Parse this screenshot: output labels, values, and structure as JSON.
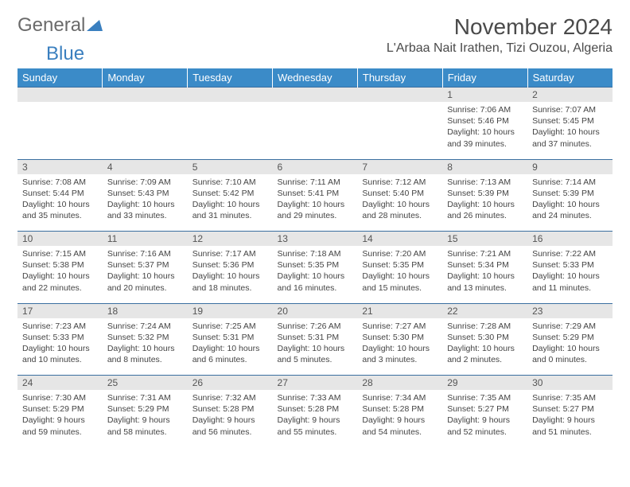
{
  "logo": {
    "general": "General",
    "blue": "Blue"
  },
  "title": "November 2024",
  "location": "L'Arbaa Nait Irathen, Tizi Ouzou, Algeria",
  "colors": {
    "header_bg": "#3b8bc8",
    "header_text": "#ffffff",
    "daynum_bg": "#e6e6e6",
    "border": "#3b6fa0",
    "body_text": "#444444",
    "title_text": "#4a4a4a",
    "logo_gray": "#6a6a6a",
    "logo_blue": "#3a7fbf"
  },
  "typography": {
    "title_fontsize": 28,
    "location_fontsize": 16,
    "dayheader_fontsize": 13,
    "daynum_fontsize": 12,
    "cell_fontsize": 10.5
  },
  "day_headers": [
    "Sunday",
    "Monday",
    "Tuesday",
    "Wednesday",
    "Thursday",
    "Friday",
    "Saturday"
  ],
  "weeks": [
    [
      null,
      null,
      null,
      null,
      null,
      {
        "n": "1",
        "sunrise": "Sunrise: 7:06 AM",
        "sunset": "Sunset: 5:46 PM",
        "daylight": "Daylight: 10 hours and 39 minutes."
      },
      {
        "n": "2",
        "sunrise": "Sunrise: 7:07 AM",
        "sunset": "Sunset: 5:45 PM",
        "daylight": "Daylight: 10 hours and 37 minutes."
      }
    ],
    [
      {
        "n": "3",
        "sunrise": "Sunrise: 7:08 AM",
        "sunset": "Sunset: 5:44 PM",
        "daylight": "Daylight: 10 hours and 35 minutes."
      },
      {
        "n": "4",
        "sunrise": "Sunrise: 7:09 AM",
        "sunset": "Sunset: 5:43 PM",
        "daylight": "Daylight: 10 hours and 33 minutes."
      },
      {
        "n": "5",
        "sunrise": "Sunrise: 7:10 AM",
        "sunset": "Sunset: 5:42 PM",
        "daylight": "Daylight: 10 hours and 31 minutes."
      },
      {
        "n": "6",
        "sunrise": "Sunrise: 7:11 AM",
        "sunset": "Sunset: 5:41 PM",
        "daylight": "Daylight: 10 hours and 29 minutes."
      },
      {
        "n": "7",
        "sunrise": "Sunrise: 7:12 AM",
        "sunset": "Sunset: 5:40 PM",
        "daylight": "Daylight: 10 hours and 28 minutes."
      },
      {
        "n": "8",
        "sunrise": "Sunrise: 7:13 AM",
        "sunset": "Sunset: 5:39 PM",
        "daylight": "Daylight: 10 hours and 26 minutes."
      },
      {
        "n": "9",
        "sunrise": "Sunrise: 7:14 AM",
        "sunset": "Sunset: 5:39 PM",
        "daylight": "Daylight: 10 hours and 24 minutes."
      }
    ],
    [
      {
        "n": "10",
        "sunrise": "Sunrise: 7:15 AM",
        "sunset": "Sunset: 5:38 PM",
        "daylight": "Daylight: 10 hours and 22 minutes."
      },
      {
        "n": "11",
        "sunrise": "Sunrise: 7:16 AM",
        "sunset": "Sunset: 5:37 PM",
        "daylight": "Daylight: 10 hours and 20 minutes."
      },
      {
        "n": "12",
        "sunrise": "Sunrise: 7:17 AM",
        "sunset": "Sunset: 5:36 PM",
        "daylight": "Daylight: 10 hours and 18 minutes."
      },
      {
        "n": "13",
        "sunrise": "Sunrise: 7:18 AM",
        "sunset": "Sunset: 5:35 PM",
        "daylight": "Daylight: 10 hours and 16 minutes."
      },
      {
        "n": "14",
        "sunrise": "Sunrise: 7:20 AM",
        "sunset": "Sunset: 5:35 PM",
        "daylight": "Daylight: 10 hours and 15 minutes."
      },
      {
        "n": "15",
        "sunrise": "Sunrise: 7:21 AM",
        "sunset": "Sunset: 5:34 PM",
        "daylight": "Daylight: 10 hours and 13 minutes."
      },
      {
        "n": "16",
        "sunrise": "Sunrise: 7:22 AM",
        "sunset": "Sunset: 5:33 PM",
        "daylight": "Daylight: 10 hours and 11 minutes."
      }
    ],
    [
      {
        "n": "17",
        "sunrise": "Sunrise: 7:23 AM",
        "sunset": "Sunset: 5:33 PM",
        "daylight": "Daylight: 10 hours and 10 minutes."
      },
      {
        "n": "18",
        "sunrise": "Sunrise: 7:24 AM",
        "sunset": "Sunset: 5:32 PM",
        "daylight": "Daylight: 10 hours and 8 minutes."
      },
      {
        "n": "19",
        "sunrise": "Sunrise: 7:25 AM",
        "sunset": "Sunset: 5:31 PM",
        "daylight": "Daylight: 10 hours and 6 minutes."
      },
      {
        "n": "20",
        "sunrise": "Sunrise: 7:26 AM",
        "sunset": "Sunset: 5:31 PM",
        "daylight": "Daylight: 10 hours and 5 minutes."
      },
      {
        "n": "21",
        "sunrise": "Sunrise: 7:27 AM",
        "sunset": "Sunset: 5:30 PM",
        "daylight": "Daylight: 10 hours and 3 minutes."
      },
      {
        "n": "22",
        "sunrise": "Sunrise: 7:28 AM",
        "sunset": "Sunset: 5:30 PM",
        "daylight": "Daylight: 10 hours and 2 minutes."
      },
      {
        "n": "23",
        "sunrise": "Sunrise: 7:29 AM",
        "sunset": "Sunset: 5:29 PM",
        "daylight": "Daylight: 10 hours and 0 minutes."
      }
    ],
    [
      {
        "n": "24",
        "sunrise": "Sunrise: 7:30 AM",
        "sunset": "Sunset: 5:29 PM",
        "daylight": "Daylight: 9 hours and 59 minutes."
      },
      {
        "n": "25",
        "sunrise": "Sunrise: 7:31 AM",
        "sunset": "Sunset: 5:29 PM",
        "daylight": "Daylight: 9 hours and 58 minutes."
      },
      {
        "n": "26",
        "sunrise": "Sunrise: 7:32 AM",
        "sunset": "Sunset: 5:28 PM",
        "daylight": "Daylight: 9 hours and 56 minutes."
      },
      {
        "n": "27",
        "sunrise": "Sunrise: 7:33 AM",
        "sunset": "Sunset: 5:28 PM",
        "daylight": "Daylight: 9 hours and 55 minutes."
      },
      {
        "n": "28",
        "sunrise": "Sunrise: 7:34 AM",
        "sunset": "Sunset: 5:28 PM",
        "daylight": "Daylight: 9 hours and 54 minutes."
      },
      {
        "n": "29",
        "sunrise": "Sunrise: 7:35 AM",
        "sunset": "Sunset: 5:27 PM",
        "daylight": "Daylight: 9 hours and 52 minutes."
      },
      {
        "n": "30",
        "sunrise": "Sunrise: 7:35 AM",
        "sunset": "Sunset: 5:27 PM",
        "daylight": "Daylight: 9 hours and 51 minutes."
      }
    ]
  ]
}
